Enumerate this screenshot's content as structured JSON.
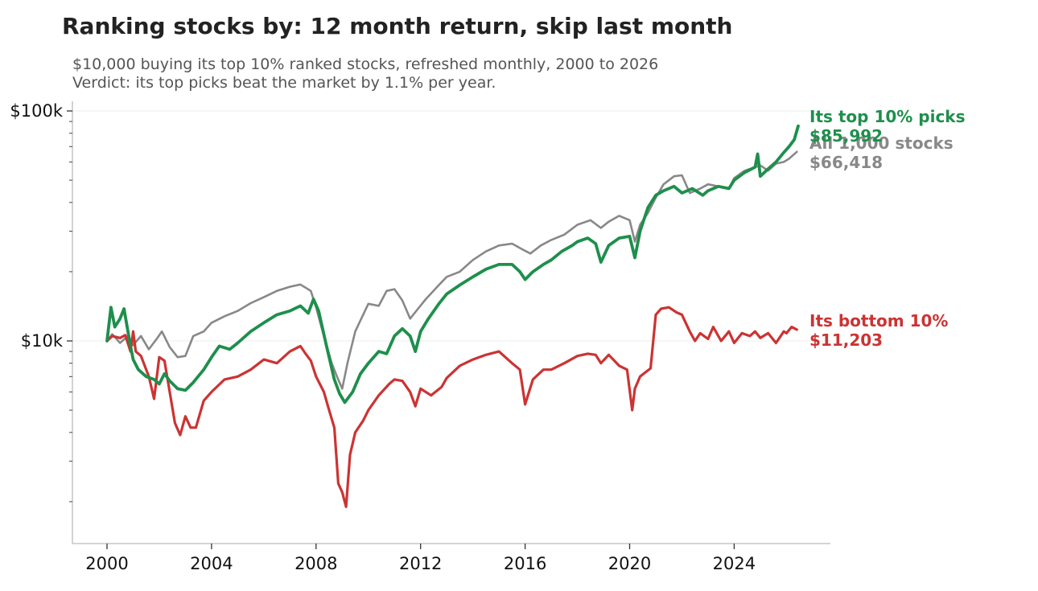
{
  "header": {
    "title": "Ranking stocks by: 12 month return, skip last month",
    "subtitle_line1": "$10,000 buying its top 10% ranked stocks, refreshed monthly, 2000 to 2026",
    "subtitle_line2": "Verdict: its top picks beat the market by 1.1% per year."
  },
  "chart_data": {
    "type": "line",
    "title": "Ranking stocks by: 12 month return, skip last month",
    "subtitle": "$10,000 buying its top 10% ranked stocks, refreshed monthly, 2000 to 2026\nVerdict: its top picks beat the market by 1.1% per year.",
    "xlabel": "",
    "ylabel": "",
    "y_scale": "log",
    "ylim": [
      1750,
      105000
    ],
    "xlim": [
      1998.7,
      2027.6
    ],
    "x_ticks": [
      2000,
      2004,
      2008,
      2012,
      2016,
      2020,
      2024
    ],
    "x_tick_labels": [
      "2000",
      "2004",
      "2008",
      "2012",
      "2016",
      "2020",
      "2024"
    ],
    "y_ticks": [
      10000,
      100000
    ],
    "y_tick_labels": [
      "$10k",
      "$100k"
    ],
    "grid": "horizontal-major",
    "legend": "end-of-line labels",
    "series": [
      {
        "key": "market",
        "label_line1": "All 1,000 stocks",
        "label_line2": "$66,418",
        "color": "#888888",
        "x": [
          2000.0,
          2000.2,
          2000.5,
          2000.8,
          2001.0,
          2001.3,
          2001.6,
          2001.9,
          2002.1,
          2002.4,
          2002.7,
          2003.0,
          2003.3,
          2003.7,
          2004.0,
          2004.5,
          2005.0,
          2005.5,
          2006.0,
          2006.5,
          2007.0,
          2007.4,
          2007.8,
          2008.0,
          2008.3,
          2008.6,
          2008.8,
          2009.0,
          2009.2,
          2009.5,
          2009.8,
          2010.0,
          2010.4,
          2010.7,
          2011.0,
          2011.3,
          2011.6,
          2011.9,
          2012.2,
          2012.7,
          2013.0,
          2013.5,
          2014.0,
          2014.5,
          2015.0,
          2015.5,
          2015.9,
          2016.2,
          2016.6,
          2017.0,
          2017.5,
          2018.0,
          2018.5,
          2018.9,
          2019.2,
          2019.6,
          2020.0,
          2020.2,
          2020.4,
          2020.7,
          2021.0,
          2021.3,
          2021.7,
          2022.0,
          2022.3,
          2022.7,
          2023.0,
          2023.4,
          2023.8,
          2024.0,
          2024.4,
          2024.8,
          2025.0,
          2025.3,
          2025.6,
          2025.9,
          2026.1,
          2026.4
        ],
        "y": [
          10000,
          10700,
          9800,
          10500,
          9600,
          10500,
          9200,
          10200,
          11000,
          9400,
          8500,
          8600,
          10500,
          11000,
          12000,
          12800,
          13500,
          14600,
          15500,
          16500,
          17200,
          17600,
          16500,
          14000,
          10500,
          8000,
          7000,
          6200,
          8000,
          11000,
          13000,
          14500,
          14200,
          16500,
          16800,
          15000,
          12500,
          13800,
          15200,
          17500,
          19000,
          20000,
          22500,
          24500,
          26000,
          26500,
          25000,
          24000,
          26000,
          27500,
          29000,
          32000,
          33500,
          31000,
          33000,
          35000,
          33500,
          27000,
          32000,
          36000,
          42000,
          48000,
          52000,
          52500,
          44000,
          46000,
          48000,
          47000,
          46000,
          51000,
          55000,
          57000,
          58000,
          55000,
          59000,
          60000,
          62000,
          66418
        ]
      },
      {
        "key": "top",
        "label_line1": "Its top 10% picks",
        "label_line2": "$85,992",
        "color": "#1e8f4c",
        "x": [
          2000.0,
          2000.15,
          2000.3,
          2000.5,
          2000.65,
          2000.8,
          2000.9,
          2001.0,
          2001.2,
          2001.5,
          2001.8,
          2002.0,
          2002.2,
          2002.4,
          2002.7,
          2003.0,
          2003.3,
          2003.7,
          2004.0,
          2004.3,
          2004.7,
          2005.0,
          2005.5,
          2006.0,
          2006.5,
          2007.0,
          2007.4,
          2007.7,
          2007.9,
          2008.1,
          2008.4,
          2008.7,
          2008.9,
          2009.1,
          2009.4,
          2009.7,
          2010.0,
          2010.4,
          2010.7,
          2011.0,
          2011.3,
          2011.6,
          2011.8,
          2012.0,
          2012.3,
          2012.7,
          2013.0,
          2013.5,
          2014.0,
          2014.5,
          2015.0,
          2015.5,
          2015.8,
          2016.0,
          2016.3,
          2016.7,
          2017.0,
          2017.4,
          2017.8,
          2018.0,
          2018.4,
          2018.7,
          2018.9,
          2019.2,
          2019.6,
          2020.0,
          2020.2,
          2020.4,
          2020.7,
          2021.0,
          2021.3,
          2021.7,
          2022.0,
          2022.4,
          2022.8,
          2023.0,
          2023.4,
          2023.8,
          2024.0,
          2024.4,
          2024.8,
          2024.9,
          2025.0,
          2025.3,
          2025.6,
          2025.9,
          2026.1,
          2026.3,
          2026.45
        ],
        "y": [
          10000,
          14000,
          11500,
          12500,
          13800,
          11000,
          9500,
          8300,
          7500,
          7000,
          6800,
          6500,
          7200,
          6700,
          6200,
          6100,
          6600,
          7500,
          8500,
          9500,
          9200,
          9800,
          11000,
          12000,
          13000,
          13500,
          14200,
          13200,
          15200,
          13500,
          9500,
          6800,
          5900,
          5400,
          6000,
          7200,
          8000,
          9000,
          8800,
          10500,
          11300,
          10500,
          9000,
          11000,
          12500,
          14500,
          16000,
          17500,
          19000,
          20500,
          21500,
          21500,
          20000,
          18500,
          20000,
          21500,
          22500,
          24500,
          26000,
          27000,
          28000,
          26500,
          22000,
          26000,
          28000,
          28500,
          23000,
          30000,
          38000,
          43000,
          45000,
          47000,
          44000,
          46000,
          43000,
          45000,
          47000,
          46000,
          50000,
          54000,
          57000,
          65000,
          52000,
          56000,
          60000,
          66000,
          70000,
          75000,
          85992
        ]
      },
      {
        "key": "bottom",
        "label_line1": "Its bottom 10%",
        "label_line2": "$11,203",
        "color": "#cc3333",
        "x": [
          2000.0,
          2000.2,
          2000.5,
          2000.7,
          2000.9,
          2001.0,
          2001.1,
          2001.3,
          2001.6,
          2001.8,
          2002.0,
          2002.2,
          2002.4,
          2002.6,
          2002.8,
          2003.0,
          2003.2,
          2003.4,
          2003.7,
          2004.0,
          2004.5,
          2005.0,
          2005.5,
          2006.0,
          2006.5,
          2007.0,
          2007.4,
          2007.6,
          2007.8,
          2008.0,
          2008.3,
          2008.5,
          2008.7,
          2008.85,
          2009.0,
          2009.15,
          2009.3,
          2009.5,
          2009.8,
          2010.0,
          2010.4,
          2010.8,
          2011.0,
          2011.3,
          2011.6,
          2011.8,
          2012.0,
          2012.4,
          2012.8,
          2013.0,
          2013.5,
          2014.0,
          2014.5,
          2015.0,
          2015.5,
          2015.8,
          2016.0,
          2016.3,
          2016.7,
          2017.0,
          2017.5,
          2018.0,
          2018.4,
          2018.7,
          2018.9,
          2019.2,
          2019.6,
          2019.9,
          2020.1,
          2020.2,
          2020.4,
          2020.6,
          2020.8,
          2021.0,
          2021.2,
          2021.5,
          2021.8,
          2022.0,
          2022.3,
          2022.5,
          2022.7,
          2023.0,
          2023.2,
          2023.5,
          2023.8,
          2024.0,
          2024.3,
          2024.6,
          2024.8,
          2025.0,
          2025.3,
          2025.6,
          2025.9,
          2026.0,
          2026.2,
          2026.4
        ],
        "y": [
          10000,
          10500,
          10300,
          10600,
          9000,
          11000,
          9000,
          8600,
          7000,
          5600,
          8500,
          8200,
          6000,
          4400,
          3900,
          4700,
          4200,
          4200,
          5500,
          6000,
          6800,
          7000,
          7500,
          8300,
          8000,
          9000,
          9500,
          8800,
          8200,
          7000,
          6000,
          5000,
          4200,
          2400,
          2200,
          1900,
          3200,
          4000,
          4500,
          5000,
          5800,
          6500,
          6800,
          6700,
          6000,
          5200,
          6200,
          5800,
          6300,
          6900,
          7800,
          8300,
          8700,
          9000,
          8000,
          7500,
          5300,
          6800,
          7500,
          7500,
          8000,
          8600,
          8800,
          8700,
          8000,
          8700,
          7800,
          7500,
          5000,
          6200,
          7000,
          7300,
          7600,
          13000,
          13800,
          14000,
          13300,
          13000,
          11000,
          10000,
          10800,
          10200,
          11500,
          10000,
          11000,
          9800,
          10800,
          10500,
          11000,
          10300,
          10800,
          9800,
          11000,
          10800,
          11500,
          11203
        ]
      }
    ]
  }
}
